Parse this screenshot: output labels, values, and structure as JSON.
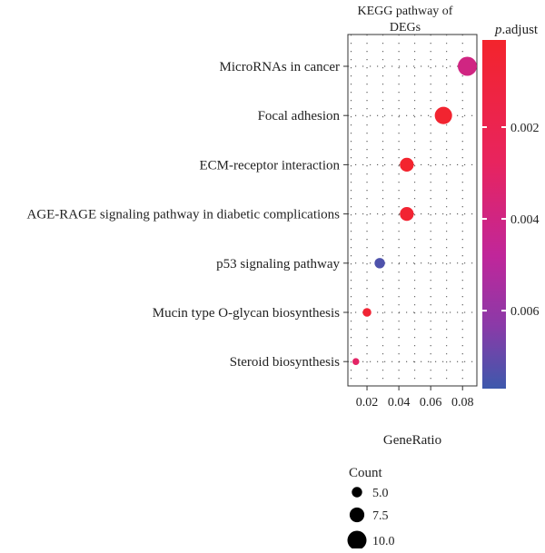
{
  "chart_data": {
    "type": "scatter",
    "title_lines": [
      "KEGG pathway of",
      "DEGs"
    ],
    "xlabel": "GeneRatio",
    "ylabel": "",
    "xlim": [
      0.008,
      0.089
    ],
    "x_ticks": [
      0.02,
      0.04,
      0.06,
      0.08
    ],
    "x_tick_labels": [
      "0.02",
      "0.04",
      "0.06",
      "0.08"
    ],
    "grid": true,
    "categories": [
      "MicroRNAs in cancer",
      "Focal adhesion",
      "ECM-receptor interaction",
      "AGE-RAGE signaling pathway in diabetic complications",
      "p53 signaling pathway",
      "Mucin type O-glycan biosynthesis",
      "Steroid biosynthesis"
    ],
    "points": [
      {
        "term": "MicroRNAs in cancer",
        "gene_ratio": 0.083,
        "count": 10,
        "p_adjust": 0.004
      },
      {
        "term": "Focal adhesion",
        "gene_ratio": 0.068,
        "count": 9,
        "p_adjust": 0.0003
      },
      {
        "term": "ECM-receptor interaction",
        "gene_ratio": 0.045,
        "count": 7,
        "p_adjust": 0.0002
      },
      {
        "term": "AGE-RAGE signaling pathway in diabetic complications",
        "gene_ratio": 0.045,
        "count": 7,
        "p_adjust": 0.0004
      },
      {
        "term": "p53 signaling pathway",
        "gene_ratio": 0.028,
        "count": 5,
        "p_adjust": 0.0074
      },
      {
        "term": "Mucin type O-glycan biosynthesis",
        "gene_ratio": 0.02,
        "count": 4,
        "p_adjust": 0.0005
      },
      {
        "term": "Steroid biosynthesis",
        "gene_ratio": 0.013,
        "count": 3,
        "p_adjust": 0.003
      }
    ],
    "color_legend": {
      "title_italic": "p",
      "title_rest": ".adjust",
      "range": [
        0.0001,
        0.0077
      ],
      "ticks": [
        0.002,
        0.004,
        0.006
      ],
      "tick_labels": [
        "0.002",
        "0.004",
        "0.006"
      ],
      "low_color": "#f3242c",
      "mid_color": "#c0269a",
      "high_color": "#3d59ac"
    },
    "size_legend": {
      "title": "Count",
      "values": [
        5,
        7.5,
        10
      ],
      "labels": [
        "5.0",
        "7.5",
        "10.0"
      ]
    }
  }
}
